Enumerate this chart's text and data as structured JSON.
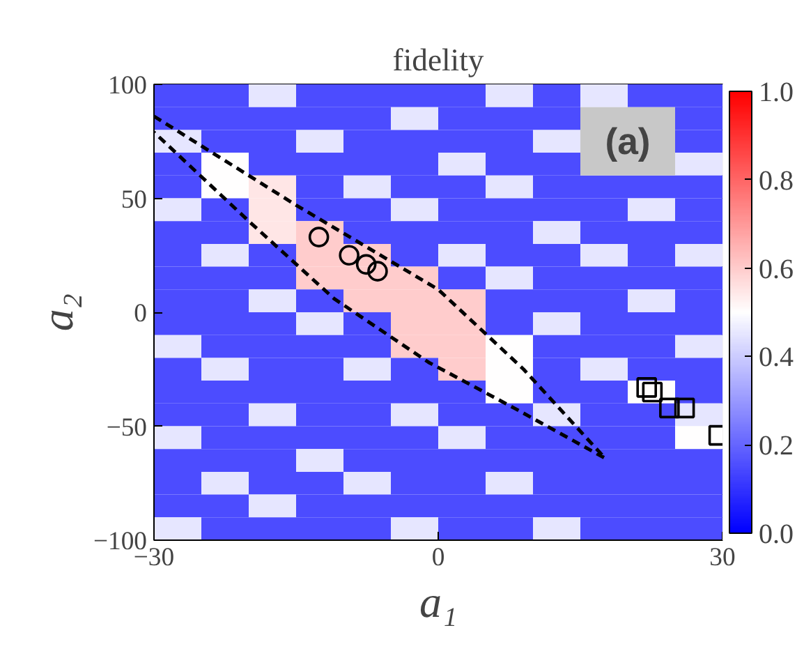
{
  "chart_data": {
    "type": "heatmap",
    "title": "fidelity",
    "xlabel": "a₁",
    "ylabel": "a₂",
    "xlim": [
      -30,
      30
    ],
    "xticks": [
      {
        "value": -30,
        "label": "−30"
      },
      0,
      30
    ],
    "ylim": [
      -100,
      100
    ],
    "yticks": [
      {
        "value": -100,
        "label": "−100"
      },
      {
        "value": -50,
        "label": "−50"
      },
      0,
      50,
      100
    ],
    "clim": [
      0,
      1
    ],
    "cticks": [
      {
        "value": 0,
        "label": "0.0"
      },
      {
        "value": 0.2,
        "label": "0.2"
      },
      {
        "value": 0.4,
        "label": "0.4"
      },
      {
        "value": 0.6,
        "label": "0.6"
      },
      {
        "value": 0.8,
        "label": "0.8"
      },
      {
        "value": 1,
        "label": "1.0"
      }
    ],
    "cells": [
      [
        0.15,
        0.15,
        0.45,
        0.15,
        0.15,
        0.15,
        0.15,
        0.45,
        0.15,
        0.45,
        0.15,
        0.15
      ],
      [
        0.15,
        0.15,
        0.15,
        0.15,
        0.15,
        0.45,
        0.15,
        0.15,
        0.15,
        null,
        null,
        0.15
      ],
      [
        0.45,
        0.15,
        0.15,
        0.45,
        0.15,
        0.15,
        0.15,
        0.15,
        0.45,
        null,
        null,
        0.15
      ],
      [
        0.15,
        0.5,
        0.15,
        0.15,
        0.15,
        0.15,
        0.45,
        0.15,
        0.15,
        null,
        null,
        0.45
      ],
      [
        0.15,
        0.5,
        0.55,
        0.15,
        0.45,
        0.15,
        0.15,
        0.45,
        0.15,
        0.15,
        0.15,
        0.15
      ],
      [
        0.45,
        0.15,
        0.55,
        0.15,
        0.15,
        0.45,
        0.15,
        0.15,
        0.15,
        0.15,
        0.45,
        0.15
      ],
      [
        0.15,
        0.15,
        0.55,
        0.6,
        0.15,
        0.15,
        0.15,
        0.15,
        0.45,
        0.15,
        0.15,
        0.15
      ],
      [
        0.15,
        0.45,
        0.15,
        0.6,
        0.6,
        0.15,
        0.45,
        0.15,
        0.15,
        0.45,
        0.15,
        0.45
      ],
      [
        0.15,
        0.15,
        0.15,
        0.6,
        0.6,
        0.6,
        0.15,
        0.45,
        0.15,
        0.15,
        0.15,
        0.15
      ],
      [
        0.15,
        0.15,
        0.45,
        0.15,
        0.6,
        0.6,
        0.6,
        0.15,
        0.15,
        0.15,
        0.45,
        0.15
      ],
      [
        0.15,
        0.15,
        0.15,
        0.45,
        0.15,
        0.6,
        0.6,
        0.15,
        0.45,
        0.15,
        0.15,
        0.15
      ],
      [
        0.45,
        0.15,
        0.15,
        0.15,
        0.15,
        0.6,
        0.6,
        0.5,
        0.15,
        0.15,
        0.15,
        0.45
      ],
      [
        0.15,
        0.45,
        0.15,
        0.15,
        0.45,
        0.15,
        0.6,
        0.5,
        0.15,
        0.45,
        0.15,
        0.15
      ],
      [
        0.15,
        0.15,
        0.15,
        0.15,
        0.15,
        0.15,
        0.15,
        0.5,
        0.15,
        0.15,
        0.5,
        0.15
      ],
      [
        0.15,
        0.15,
        0.45,
        0.15,
        0.15,
        0.45,
        0.15,
        0.15,
        0.45,
        0.15,
        0.15,
        0.45
      ],
      [
        0.45,
        0.15,
        0.15,
        0.15,
        0.15,
        0.15,
        0.45,
        0.15,
        0.15,
        0.15,
        0.15,
        0.5
      ],
      [
        0.15,
        0.15,
        0.15,
        0.45,
        0.15,
        0.15,
        0.15,
        0.15,
        0.15,
        0.15,
        0.15,
        0.15
      ],
      [
        0.15,
        0.45,
        0.15,
        0.15,
        0.45,
        0.15,
        0.15,
        0.45,
        0.15,
        0.15,
        0.15,
        0.15
      ],
      [
        0.15,
        0.15,
        0.45,
        0.15,
        0.15,
        0.15,
        0.15,
        0.15,
        0.15,
        0.15,
        0.15,
        0.15
      ],
      [
        0.45,
        0.15,
        0.15,
        0.15,
        0.15,
        0.45,
        0.15,
        0.15,
        0.45,
        0.15,
        0.15,
        0.15
      ]
    ],
    "series": [
      {
        "type": "line",
        "line_style": "dashed",
        "color": "#000000",
        "x": [
          -30,
          -15,
          0,
          9,
          17.6,
          8,
          -1,
          -11,
          -20,
          -30
        ],
        "values": [
          86,
          47,
          10,
          -25,
          -64,
          -42,
          -22,
          6,
          40,
          79
        ]
      },
      {
        "type": "scatter",
        "marker": "circle",
        "color": "#000000",
        "x": [
          -12.6,
          -9.4,
          -7.6,
          -6.4
        ],
        "values": [
          33,
          25,
          21,
          18
        ]
      },
      {
        "type": "scatter",
        "marker": "square",
        "color": "#000000",
        "x": [
          22,
          22.6,
          24.4,
          26,
          29.6
        ],
        "values": [
          -33,
          -35,
          -42,
          -42,
          -54
        ]
      }
    ],
    "annotations": [
      "(a)"
    ]
  }
}
